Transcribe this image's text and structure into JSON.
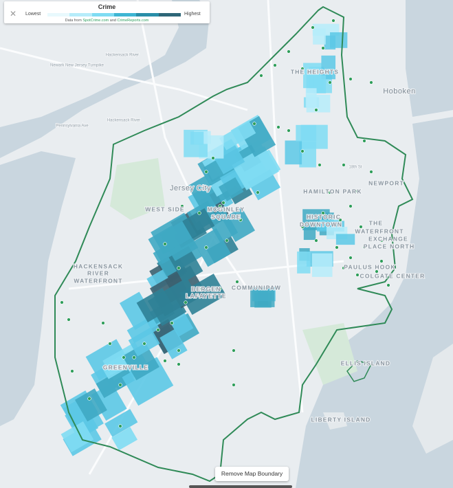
{
  "legend": {
    "title": "Crime",
    "low": "Lowest",
    "high": "Highest",
    "source": {
      "prefix": "Data from",
      "link1": "SpotCrime.com",
      "joiner": "and",
      "link2": "CrimeReports.com"
    }
  },
  "map_labels": [
    "THE HEIGHTS",
    "Hoboken",
    "Jersey City",
    "WEST SIDE",
    "MCGINLEY",
    "SQUARE",
    "HAMILTON PARK",
    "NEWPORT",
    "HISTORIC",
    "DOWNTOWN",
    "THE",
    "WATERFRONT",
    "EXCHANGE",
    "PLACE NORTH",
    "HACKENSACK",
    "RIVER",
    "WATERFRONT",
    "BERGEN",
    "LAFAYETTE",
    "COMMUNIPAW",
    "PAULUS HOOK",
    "COLGATE CENTER",
    "GREENVILLE",
    "ELLIS ISLAND",
    "LIBERTY ISLAND",
    "18th St",
    "Hackensack River",
    "Newark New Jersey Turnpike",
    "Hackensack River",
    "Pennsylvania Ave"
  ],
  "button": "Remove Map Boundary"
}
